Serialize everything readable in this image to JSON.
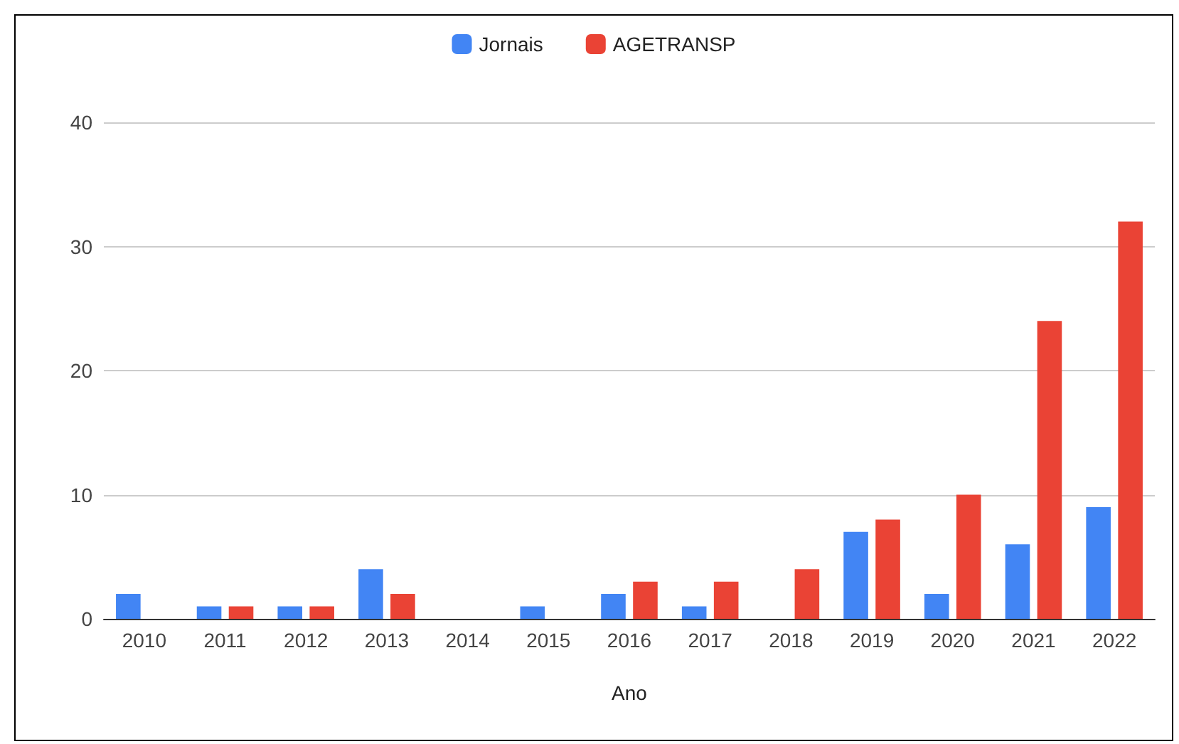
{
  "chart_data": {
    "type": "bar",
    "xlabel": "Ano",
    "categories": [
      "2010",
      "2011",
      "2012",
      "2013",
      "2014",
      "2015",
      "2016",
      "2017",
      "2018",
      "2019",
      "2020",
      "2021",
      "2022"
    ],
    "series": [
      {
        "name": "Jornais",
        "color": "#4285f4",
        "values": [
          2,
          1,
          1,
          4,
          0,
          1,
          2,
          1,
          0,
          7,
          2,
          6,
          9
        ]
      },
      {
        "name": "AGETRANSP",
        "color": "#ea4335",
        "values": [
          0,
          1,
          1,
          2,
          0,
          0,
          3,
          3,
          4,
          8,
          10,
          24,
          32
        ]
      }
    ],
    "ylim": [
      0,
      40
    ],
    "yticks": [
      0,
      10,
      20,
      30,
      40
    ],
    "grid": "y",
    "legend": "top"
  }
}
